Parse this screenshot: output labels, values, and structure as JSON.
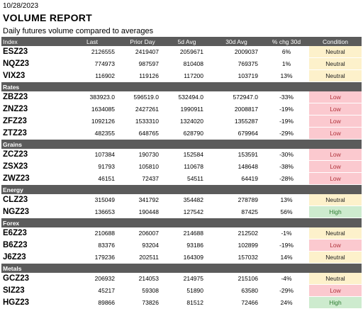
{
  "report": {
    "date": "10/28/2023",
    "title": "VOLUME  REPORT",
    "subtitle": "Daily futures volume compared to averages"
  },
  "columns": [
    "Index",
    "Last",
    "Prior Day",
    "5d Avg",
    "30d Avg",
    "% chg 30d",
    "Condition"
  ],
  "groups": [
    {
      "name": "",
      "rows": [
        {
          "sym": "ESZ23",
          "last": "2126555",
          "prior": "2419407",
          "avg5": "2059671",
          "avg30": "2009037",
          "chg": "6%",
          "cond": "Neutral"
        },
        {
          "sym": "NQZ23",
          "last": "774973",
          "prior": "987597",
          "avg5": "810408",
          "avg30": "769375",
          "chg": "1%",
          "cond": "Neutral"
        },
        {
          "sym": "VIX23",
          "last": "116902",
          "prior": "119126",
          "avg5": "117200",
          "avg30": "103719",
          "chg": "13%",
          "cond": "Neutral"
        }
      ]
    },
    {
      "name": "Rates",
      "rows": [
        {
          "sym": "ZBZ23",
          "last": "383923.0",
          "prior": "596519.0",
          "avg5": "532494.0",
          "avg30": "572947.0",
          "chg": "-33%",
          "cond": "Low"
        },
        {
          "sym": "ZNZ23",
          "last": "1634085",
          "prior": "2427261",
          "avg5": "1990911",
          "avg30": "2008817",
          "chg": "-19%",
          "cond": "Low"
        },
        {
          "sym": "ZFZ23",
          "last": "1092126",
          "prior": "1533310",
          "avg5": "1324020",
          "avg30": "1355287",
          "chg": "-19%",
          "cond": "Low"
        },
        {
          "sym": "ZTZ23",
          "last": "482355",
          "prior": "648765",
          "avg5": "628790",
          "avg30": "679964",
          "chg": "-29%",
          "cond": "Low"
        }
      ]
    },
    {
      "name": "Grains",
      "rows": [
        {
          "sym": "ZCZ23",
          "last": "107384",
          "prior": "190730",
          "avg5": "152584",
          "avg30": "153591",
          "chg": "-30%",
          "cond": "Low"
        },
        {
          "sym": "ZSX23",
          "last": "91793",
          "prior": "105810",
          "avg5": "110678",
          "avg30": "148648",
          "chg": "-38%",
          "cond": "Low"
        },
        {
          "sym": "ZWZ23",
          "last": "46151",
          "prior": "72437",
          "avg5": "54511",
          "avg30": "64419",
          "chg": "-28%",
          "cond": "Low"
        }
      ]
    },
    {
      "name": "Energy",
      "rows": [
        {
          "sym": "CLZ23",
          "last": "315049",
          "prior": "341792",
          "avg5": "354482",
          "avg30": "278789",
          "chg": "13%",
          "cond": "Neutral"
        },
        {
          "sym": "NGZ23",
          "last": "136653",
          "prior": "190448",
          "avg5": "127542",
          "avg30": "87425",
          "chg": "56%",
          "cond": "High"
        }
      ]
    },
    {
      "name": "Forex",
      "rows": [
        {
          "sym": "E6Z23",
          "last": "210688",
          "prior": "206007",
          "avg5": "214688",
          "avg30": "212502",
          "chg": "-1%",
          "cond": "Neutral"
        },
        {
          "sym": "B6Z23",
          "last": "83376",
          "prior": "93204",
          "avg5": "93186",
          "avg30": "102899",
          "chg": "-19%",
          "cond": "Low"
        },
        {
          "sym": "J6Z23",
          "last": "179236",
          "prior": "202511",
          "avg5": "164309",
          "avg30": "157032",
          "chg": "14%",
          "cond": "Neutral"
        }
      ]
    },
    {
      "name": "Metals",
      "rows": [
        {
          "sym": "GCZ23",
          "last": "206932",
          "prior": "214053",
          "avg5": "214975",
          "avg30": "215106",
          "chg": "-4%",
          "cond": "Neutral"
        },
        {
          "sym": "SIZ23",
          "last": "45217",
          "prior": "59308",
          "avg5": "51890",
          "avg30": "63580",
          "chg": "-29%",
          "cond": "Low"
        },
        {
          "sym": "HGZ23",
          "last": "89866",
          "prior": "73826",
          "avg5": "81512",
          "avg30": "72466",
          "chg": "24%",
          "cond": "High"
        }
      ]
    }
  ],
  "colors": {
    "header_bg": "#5b5b5b",
    "neutral": "#fdf1cb",
    "low": "#fbc9cf",
    "high": "#cdebce"
  }
}
